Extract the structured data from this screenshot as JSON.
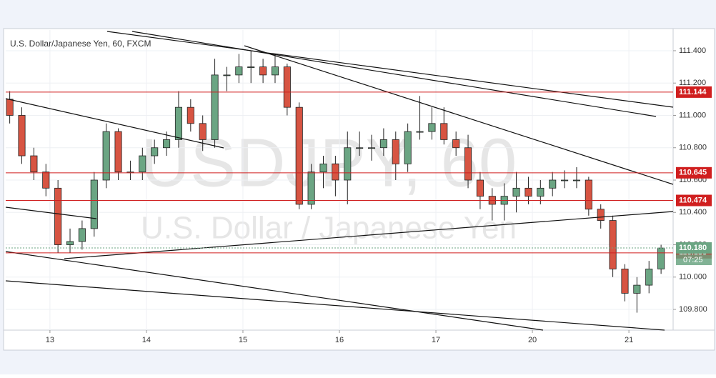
{
  "chart_data": {
    "type": "candlestick",
    "title": "U.S. Dollar/Japanese Yen, 60, FXCM",
    "watermark": "USDJPY, 60",
    "watermark_subtitle": "U.S. Dollar / Japanese Yen",
    "x": [
      1,
      4,
      7,
      10,
      13,
      16,
      19,
      22,
      25,
      28,
      31,
      34,
      37,
      40,
      43,
      46,
      49,
      52,
      55,
      58,
      61,
      64,
      67,
      70,
      73,
      76,
      79,
      82,
      85,
      88,
      91,
      94,
      97,
      100,
      103,
      106,
      109,
      112,
      115,
      118,
      121,
      124,
      127,
      130,
      133,
      136,
      139,
      142,
      145,
      148,
      151,
      154,
      157,
      160,
      163
    ],
    "open": [
      111.1,
      111.0,
      110.75,
      110.65,
      110.55,
      110.2,
      110.22,
      110.3,
      110.6,
      110.9,
      110.65,
      110.65,
      110.75,
      110.8,
      110.85,
      111.05,
      110.95,
      110.85,
      111.25,
      111.25,
      111.3,
      111.3,
      111.25,
      111.3,
      111.05,
      110.45,
      110.65,
      110.7,
      110.6,
      110.8,
      110.8,
      110.8,
      110.85,
      110.7,
      110.9,
      110.9,
      110.95,
      110.85,
      110.8,
      110.6,
      110.5,
      110.45,
      110.5,
      110.55,
      110.5,
      110.55,
      110.6,
      110.6,
      110.6,
      110.42,
      110.35,
      110.05,
      109.9,
      109.95,
      110.05
    ],
    "high": [
      111.15,
      111.05,
      110.8,
      110.7,
      110.6,
      110.3,
      110.35,
      110.65,
      110.95,
      110.92,
      110.72,
      110.8,
      110.85,
      110.9,
      111.15,
      111.1,
      111.0,
      111.35,
      111.3,
      111.38,
      111.4,
      111.35,
      111.38,
      111.32,
      111.08,
      110.7,
      110.75,
      110.75,
      110.9,
      110.9,
      110.88,
      110.92,
      110.9,
      110.95,
      111.12,
      111.05,
      111.05,
      110.9,
      110.88,
      110.65,
      110.55,
      110.58,
      110.65,
      110.62,
      110.6,
      110.65,
      110.66,
      110.68,
      110.62,
      110.45,
      110.38,
      110.08,
      110.0,
      110.1,
      110.2
    ],
    "low": [
      110.95,
      110.7,
      110.6,
      110.5,
      110.15,
      110.15,
      110.17,
      110.25,
      110.55,
      110.6,
      110.6,
      110.6,
      110.7,
      110.75,
      110.8,
      110.9,
      110.78,
      110.8,
      111.15,
      111.2,
      111.2,
      111.2,
      111.2,
      111.0,
      110.42,
      110.42,
      110.55,
      110.5,
      110.45,
      110.75,
      110.72,
      110.75,
      110.6,
      110.65,
      110.85,
      110.85,
      110.82,
      110.75,
      110.55,
      110.42,
      110.35,
      110.35,
      110.4,
      110.45,
      110.45,
      110.5,
      110.55,
      110.55,
      110.38,
      110.3,
      110.0,
      109.85,
      109.78,
      109.9,
      110.02
    ],
    "close": [
      111.0,
      110.75,
      110.65,
      110.55,
      110.2,
      110.22,
      110.3,
      110.6,
      110.9,
      110.65,
      110.65,
      110.75,
      110.8,
      110.85,
      111.05,
      110.95,
      110.85,
      111.25,
      111.25,
      111.3,
      111.3,
      111.25,
      111.3,
      111.05,
      110.45,
      110.65,
      110.7,
      110.6,
      110.8,
      110.8,
      110.8,
      110.85,
      110.7,
      110.9,
      110.9,
      110.95,
      110.85,
      110.8,
      110.6,
      110.5,
      110.45,
      110.5,
      110.55,
      110.5,
      110.55,
      110.6,
      110.6,
      110.6,
      110.42,
      110.35,
      110.05,
      109.9,
      109.95,
      110.05,
      110.18
    ],
    "up_color": "#6ba583",
    "down_color": "#d75442",
    "xlim": [
      0,
      166
    ],
    "xticks": [
      {
        "value": 11,
        "label": "13"
      },
      {
        "value": 35,
        "label": "14"
      },
      {
        "value": 59,
        "label": "15"
      },
      {
        "value": 83,
        "label": "16"
      },
      {
        "value": 107,
        "label": "17"
      },
      {
        "value": 131,
        "label": "20"
      },
      {
        "value": 155,
        "label": "21"
      }
    ],
    "ylim": [
      109.672,
      111.528
    ],
    "yticks": [
      {
        "value": 109.8,
        "label": "109.800"
      },
      {
        "value": 110.0,
        "label": "110.000"
      },
      {
        "value": 110.2,
        "label": "110.200"
      },
      {
        "value": 110.4,
        "label": "110.400"
      },
      {
        "value": 110.6,
        "label": "110.600"
      },
      {
        "value": 110.8,
        "label": "110.800"
      },
      {
        "value": 111.0,
        "label": "111.000"
      },
      {
        "value": 111.2,
        "label": "111.200"
      },
      {
        "value": 111.4,
        "label": "111.400"
      }
    ],
    "levels": [
      {
        "value": 111.144,
        "label": "111.144"
      },
      {
        "value": 110.645,
        "label": "110.645"
      },
      {
        "value": 110.474,
        "label": "110.474"
      },
      {
        "value": 110.15,
        "label": "110.150"
      }
    ],
    "level_color": "#d01f1f",
    "last_price": {
      "value": 110.18,
      "label": "110.180"
    },
    "countdown": "07:25"
  }
}
